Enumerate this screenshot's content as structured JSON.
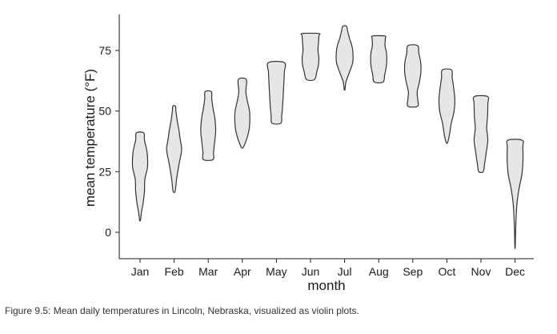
{
  "caption": "Figure 9.5: Mean daily temperatures in Lincoln, Nebraska, visualized as violin plots.",
  "colors": {
    "violin_fill": "#e6e6e6",
    "violin_stroke": "#333333",
    "axis": "#1a1a1a"
  },
  "chart_data": {
    "type": "violin",
    "xlabel": "month",
    "ylabel": "mean temperature (°F)",
    "ylim": [
      -10,
      88
    ],
    "yticks": [
      0,
      25,
      50,
      75
    ],
    "grid": false,
    "categories": [
      "Jan",
      "Feb",
      "Mar",
      "Apr",
      "May",
      "Jun",
      "Jul",
      "Aug",
      "Sep",
      "Oct",
      "Nov",
      "Dec"
    ],
    "violins": [
      {
        "month": "Jan",
        "min": 5,
        "max": 41,
        "profile": [
          [
            5,
            0.05
          ],
          [
            8,
            0.15
          ],
          [
            12,
            0.35
          ],
          [
            17,
            0.5
          ],
          [
            22,
            0.55
          ],
          [
            27,
            0.85
          ],
          [
            33,
            0.8
          ],
          [
            38,
            0.5
          ],
          [
            41,
            0.42
          ]
        ]
      },
      {
        "month": "Feb",
        "min": 17,
        "max": 52,
        "profile": [
          [
            17,
            0.12
          ],
          [
            22,
            0.28
          ],
          [
            28,
            0.55
          ],
          [
            34,
            0.85
          ],
          [
            38,
            0.7
          ],
          [
            42,
            0.55
          ],
          [
            46,
            0.35
          ],
          [
            50,
            0.2
          ],
          [
            52,
            0.15
          ]
        ]
      },
      {
        "month": "Mar",
        "min": 30,
        "max": 58,
        "profile": [
          [
            30,
            0.55
          ],
          [
            33,
            0.6
          ],
          [
            37,
            0.72
          ],
          [
            42,
            0.85
          ],
          [
            47,
            0.75
          ],
          [
            51,
            0.55
          ],
          [
            55,
            0.4
          ],
          [
            58,
            0.35
          ]
        ]
      },
      {
        "month": "Apr",
        "min": 35,
        "max": 63,
        "profile": [
          [
            35,
            0.1
          ],
          [
            38,
            0.45
          ],
          [
            42,
            0.75
          ],
          [
            46,
            0.85
          ],
          [
            50,
            0.82
          ],
          [
            54,
            0.58
          ],
          [
            58,
            0.4
          ],
          [
            63,
            0.45
          ]
        ]
      },
      {
        "month": "May",
        "min": 45,
        "max": 70,
        "profile": [
          [
            45,
            0.5
          ],
          [
            48,
            0.6
          ],
          [
            52,
            0.7
          ],
          [
            57,
            0.78
          ],
          [
            62,
            0.85
          ],
          [
            66,
            0.9
          ],
          [
            70,
            0.9
          ]
        ]
      },
      {
        "month": "Jun",
        "min": 63,
        "max": 82,
        "profile": [
          [
            63,
            0.45
          ],
          [
            66,
            0.7
          ],
          [
            69,
            0.9
          ],
          [
            72,
            0.95
          ],
          [
            75,
            0.85
          ],
          [
            78,
            0.9
          ],
          [
            81,
            0.95
          ],
          [
            82,
            0.95
          ]
        ]
      },
      {
        "month": "Jul",
        "min": 59,
        "max": 85,
        "profile": [
          [
            59,
            0.05
          ],
          [
            62,
            0.15
          ],
          [
            66,
            0.55
          ],
          [
            70,
            0.92
          ],
          [
            74,
            0.95
          ],
          [
            77,
            0.82
          ],
          [
            80,
            0.55
          ],
          [
            83,
            0.35
          ],
          [
            85,
            0.2
          ]
        ]
      },
      {
        "month": "Aug",
        "min": 62,
        "max": 81,
        "profile": [
          [
            62,
            0.5
          ],
          [
            65,
            0.68
          ],
          [
            68,
            0.85
          ],
          [
            71,
            0.92
          ],
          [
            74,
            0.88
          ],
          [
            77,
            0.72
          ],
          [
            80,
            0.75
          ],
          [
            81,
            0.7
          ]
        ]
      },
      {
        "month": "Sep",
        "min": 52,
        "max": 77,
        "profile": [
          [
            52,
            0.55
          ],
          [
            55,
            0.55
          ],
          [
            58,
            0.5
          ],
          [
            62,
            0.75
          ],
          [
            66,
            0.92
          ],
          [
            70,
            0.9
          ],
          [
            74,
            0.68
          ],
          [
            77,
            0.55
          ]
        ]
      },
      {
        "month": "Oct",
        "min": 37,
        "max": 67,
        "profile": [
          [
            37,
            0.08
          ],
          [
            40,
            0.28
          ],
          [
            45,
            0.5
          ],
          [
            50,
            0.82
          ],
          [
            55,
            0.9
          ],
          [
            60,
            0.75
          ],
          [
            64,
            0.6
          ],
          [
            67,
            0.52
          ]
        ]
      },
      {
        "month": "Nov",
        "min": 25,
        "max": 56,
        "profile": [
          [
            25,
            0.25
          ],
          [
            28,
            0.4
          ],
          [
            33,
            0.6
          ],
          [
            38,
            0.78
          ],
          [
            43,
            0.65
          ],
          [
            48,
            0.75
          ],
          [
            53,
            0.78
          ],
          [
            56,
            0.75
          ]
        ]
      },
      {
        "month": "Dec",
        "min": -6,
        "max": 38,
        "profile": [
          [
            -6,
            0.02
          ],
          [
            0,
            0.06
          ],
          [
            6,
            0.12
          ],
          [
            12,
            0.22
          ],
          [
            18,
            0.45
          ],
          [
            24,
            0.78
          ],
          [
            30,
            0.9
          ],
          [
            35,
            0.88
          ],
          [
            38,
            0.8
          ]
        ]
      }
    ]
  }
}
